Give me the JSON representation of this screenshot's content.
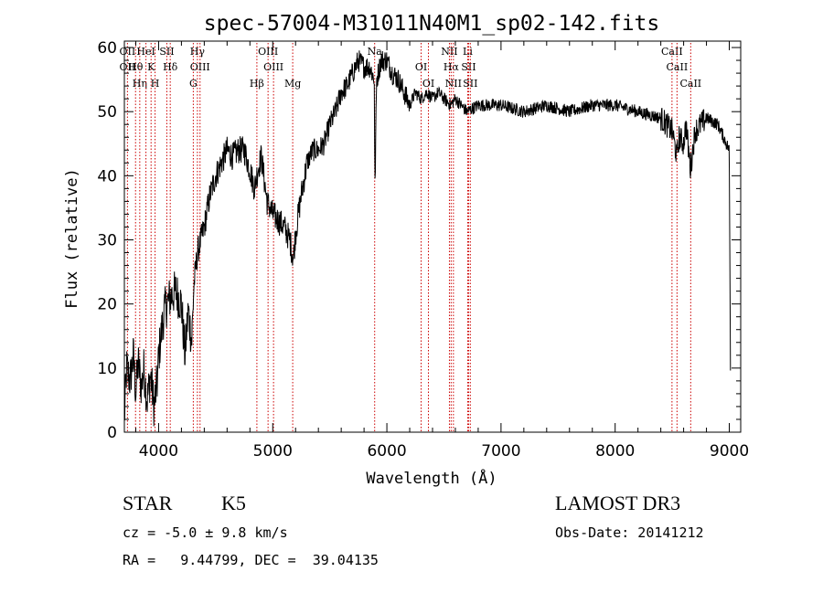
{
  "chart_data": {
    "type": "line",
    "title": "spec-57004-M31011N40M1_sp02-142.fits",
    "xlabel": "Wavelength (Å)",
    "ylabel": "Flux (relative)",
    "xlim": [
      3700,
      9100
    ],
    "ylim": [
      0,
      61
    ],
    "xticks": [
      4000,
      5000,
      6000,
      7000,
      8000,
      9000
    ],
    "yticks": [
      0,
      10,
      20,
      30,
      40,
      50,
      60
    ],
    "spectrum_anchors": [
      [
        3700,
        2
      ],
      [
        3720,
        10
      ],
      [
        3750,
        8
      ],
      [
        3780,
        12
      ],
      [
        3800,
        6
      ],
      [
        3820,
        11
      ],
      [
        3850,
        7
      ],
      [
        3870,
        10
      ],
      [
        3900,
        5
      ],
      [
        3930,
        9
      ],
      [
        3960,
        4
      ],
      [
        3990,
        8
      ],
      [
        4000,
        12
      ],
      [
        4050,
        19
      ],
      [
        4100,
        21
      ],
      [
        4150,
        22
      ],
      [
        4200,
        20
      ],
      [
        4230,
        12
      ],
      [
        4260,
        19
      ],
      [
        4290,
        14
      ],
      [
        4310,
        23
      ],
      [
        4340,
        28
      ],
      [
        4400,
        32
      ],
      [
        4450,
        37
      ],
      [
        4500,
        40
      ],
      [
        4550,
        42
      ],
      [
        4600,
        44
      ],
      [
        4650,
        43
      ],
      [
        4700,
        44
      ],
      [
        4750,
        44
      ],
      [
        4800,
        41
      ],
      [
        4840,
        38
      ],
      [
        4870,
        41
      ],
      [
        4900,
        43
      ],
      [
        4950,
        36
      ],
      [
        5000,
        34
      ],
      [
        5050,
        33
      ],
      [
        5100,
        32
      ],
      [
        5150,
        30
      ],
      [
        5180,
        27
      ],
      [
        5200,
        31
      ],
      [
        5250,
        37
      ],
      [
        5300,
        42
      ],
      [
        5350,
        44
      ],
      [
        5400,
        44
      ],
      [
        5450,
        45
      ],
      [
        5500,
        48
      ],
      [
        5550,
        50
      ],
      [
        5600,
        53
      ],
      [
        5650,
        54
      ],
      [
        5700,
        56
      ],
      [
        5750,
        58
      ],
      [
        5800,
        57
      ],
      [
        5850,
        57
      ],
      [
        5890,
        55
      ],
      [
        5895,
        37
      ],
      [
        5910,
        55
      ],
      [
        5950,
        58
      ],
      [
        6000,
        58
      ],
      [
        6050,
        56
      ],
      [
        6100,
        55
      ],
      [
        6150,
        53
      ],
      [
        6200,
        51
      ],
      [
        6250,
        53
      ],
      [
        6300,
        52
      ],
      [
        6350,
        53
      ],
      [
        6400,
        52
      ],
      [
        6450,
        53
      ],
      [
        6500,
        52
      ],
      [
        6560,
        51
      ],
      [
        6600,
        52
      ],
      [
        6650,
        51
      ],
      [
        6700,
        50
      ],
      [
        6800,
        51
      ],
      [
        6900,
        51
      ],
      [
        7000,
        51
      ],
      [
        7200,
        50
      ],
      [
        7400,
        51
      ],
      [
        7600,
        50
      ],
      [
        7800,
        51
      ],
      [
        8000,
        51
      ],
      [
        8200,
        50
      ],
      [
        8400,
        49
      ],
      [
        8500,
        47
      ],
      [
        8540,
        43
      ],
      [
        8560,
        46
      ],
      [
        8600,
        45
      ],
      [
        8620,
        48
      ],
      [
        8660,
        41
      ],
      [
        8700,
        47
      ],
      [
        8800,
        49
      ],
      [
        8900,
        48
      ],
      [
        8950,
        46
      ],
      [
        9000,
        44
      ],
      [
        9010,
        10
      ]
    ],
    "spectral_lines": [
      {
        "wavelength": 3727,
        "names": [
          "OII",
          "OII"
        ]
      },
      {
        "wavelength": 3798,
        "names": [
          "Hθ"
        ]
      },
      {
        "wavelength": 3835,
        "names": [
          "Hη"
        ]
      },
      {
        "wavelength": 3889,
        "names": [
          "HeI"
        ]
      },
      {
        "wavelength": 3934,
        "names": [
          "K"
        ]
      },
      {
        "wavelength": 3969,
        "names": [
          "H"
        ]
      },
      {
        "wavelength": 4072,
        "names": [
          "SII"
        ]
      },
      {
        "wavelength": 4102,
        "names": [
          "Hδ"
        ]
      },
      {
        "wavelength": 4304,
        "names": [
          "G"
        ]
      },
      {
        "wavelength": 4340,
        "names": [
          "Hγ"
        ]
      },
      {
        "wavelength": 4363,
        "names": [
          "OIII"
        ]
      },
      {
        "wavelength": 4861,
        "names": [
          "Hβ"
        ]
      },
      {
        "wavelength": 4959,
        "names": [
          "OIII"
        ]
      },
      {
        "wavelength": 5007,
        "names": [
          "OIII"
        ]
      },
      {
        "wavelength": 5175,
        "names": [
          "Mg"
        ]
      },
      {
        "wavelength": 5893,
        "names": [
          "Na"
        ]
      },
      {
        "wavelength": 6300,
        "names": [
          "OI"
        ]
      },
      {
        "wavelength": 6364,
        "names": [
          "OI"
        ]
      },
      {
        "wavelength": 6548,
        "names": [
          "NII"
        ]
      },
      {
        "wavelength": 6563,
        "names": [
          "Hα"
        ]
      },
      {
        "wavelength": 6583,
        "names": [
          "NII"
        ]
      },
      {
        "wavelength": 6708,
        "names": [
          "Li"
        ]
      },
      {
        "wavelength": 6716,
        "names": [
          "SII"
        ]
      },
      {
        "wavelength": 6731,
        "names": [
          "SII"
        ]
      },
      {
        "wavelength": 8498,
        "names": [
          "CaII"
        ]
      },
      {
        "wavelength": 8542,
        "names": [
          "CaII"
        ]
      },
      {
        "wavelength": 8662,
        "names": [
          "CaII"
        ]
      }
    ]
  },
  "info": {
    "object_type": "STAR",
    "subclass": "K5",
    "survey": "LAMOST DR3",
    "cz_line": "cz = -5.0 ± 9.8 km/s",
    "obs_date_line": "Obs-Date: 20141212",
    "radec_line": "RA =   9.44799, DEC =  39.04135"
  },
  "colors": {
    "line_marker": "#cc0000",
    "spectrum": "#000000"
  }
}
